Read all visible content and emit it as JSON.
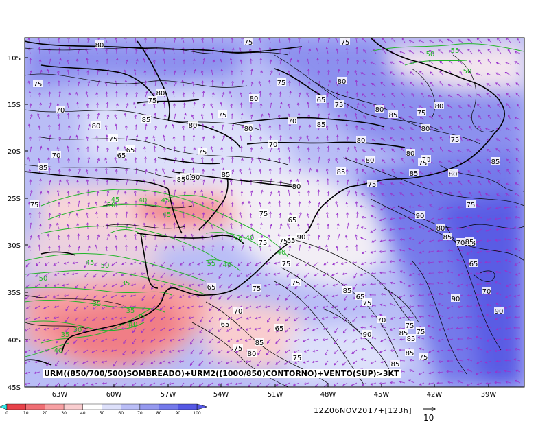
{
  "lat_ticks": [
    "10S",
    "15S",
    "20S",
    "25S",
    "30S",
    "35S",
    "40S",
    "45S"
  ],
  "lon_ticks": [
    "63W",
    "60W",
    "57W",
    "54W",
    "51W",
    "48W",
    "45W",
    "42W",
    "39W"
  ],
  "caption": "URM((850/700/500)SOMBREADO)+URM2((1000/850)CONTORNO)+VENTO(SUP)>3KT",
  "valid_time": "12Z06NOV2017+[123h]",
  "vector_reference": "10",
  "colorbar": {
    "labels": [
      "0",
      "10",
      "20",
      "30",
      "40",
      "50",
      "60",
      "70",
      "80",
      "90",
      "100"
    ],
    "colors": [
      "#33e6e6",
      "#e8424a",
      "#f06e74",
      "#f7a0a3",
      "#f9cdcf",
      "#ffffff",
      "#dde0fa",
      "#b9bdf6",
      "#9599ef",
      "#7479ea",
      "#5558e4"
    ]
  },
  "colors": {
    "vectors": "#9933cc",
    "contours_black": "#000000",
    "contours_green": "#22b52a",
    "dry": "#f07e86",
    "moist": "#6e6fe8"
  },
  "black_labels": [
    "80",
    "75",
    "75",
    "75",
    "80",
    "75",
    "80",
    "75",
    "80",
    "70",
    "65",
    "75",
    "85",
    "80",
    "85",
    "80",
    "75",
    "80",
    "70",
    "85",
    "80",
    "75",
    "65",
    "70",
    "80",
    "75",
    "75",
    "70",
    "65",
    "80",
    "70",
    "75",
    "85",
    "80",
    "85",
    "80",
    "90",
    "85",
    "80",
    "75",
    "75",
    "85",
    "65",
    "80",
    "75",
    "80",
    "80",
    "85",
    "65",
    "75",
    "75",
    "75",
    "90",
    "90",
    "80",
    "85",
    "70",
    "85",
    "65",
    "75",
    "75",
    "65",
    "75",
    "85",
    "65",
    "70",
    "75",
    "70",
    "70",
    "75",
    "65",
    "65",
    "85",
    "90",
    "90",
    "85",
    "90",
    "75",
    "80",
    "85",
    "75",
    "75",
    "85",
    "85",
    "85",
    "75",
    "75",
    "85",
    "85"
  ],
  "green_labels": [
    "50",
    "55",
    "50",
    "45",
    "50",
    "40",
    "45",
    "45",
    "35",
    "40",
    "40",
    "45",
    "50",
    "50",
    "35",
    "55",
    "40",
    "35",
    "35",
    "40",
    "35",
    "40",
    "30",
    "35",
    "40"
  ]
}
